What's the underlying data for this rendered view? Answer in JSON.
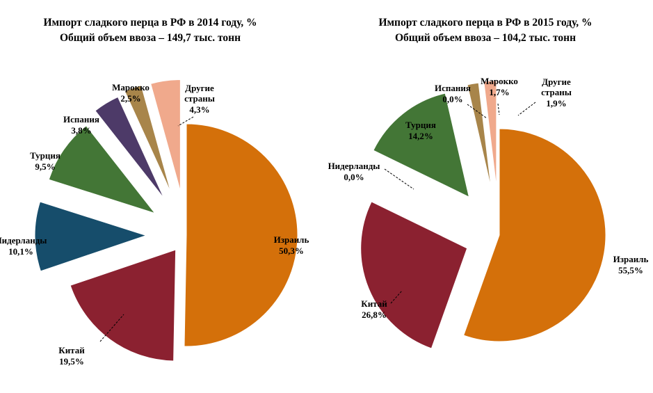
{
  "chart_data": [
    {
      "type": "pie",
      "title": "Импорт сладкого перца в РФ в 2014 году, %",
      "subtitle": "Общий объем ввоза – 149,7 тыс. тонн",
      "slices": [
        {
          "label": "Израиль",
          "value_text": "50,3%",
          "value": 50.3,
          "color": "#D4700A"
        },
        {
          "label": "Китай",
          "value_text": "19,5%",
          "value": 19.5,
          "color": "#8B2130"
        },
        {
          "label": "Нидерланды",
          "value_text": "10,1%",
          "value": 10.1,
          "color": "#164D6B"
        },
        {
          "label": "Турция",
          "value_text": "9,5%",
          "value": 9.5,
          "color": "#437636"
        },
        {
          "label": "Испания",
          "value_text": "3,8%",
          "value": 3.8,
          "color": "#4D3A68"
        },
        {
          "label": "Марокко",
          "value_text": "2,5%",
          "value": 2.5,
          "color": "#A8854A"
        },
        {
          "label": "Другие страны",
          "value_text": "4,3%",
          "value": 4.3,
          "color": "#F0A98C"
        }
      ]
    },
    {
      "type": "pie",
      "title": "Импорт сладкого перца в РФ в 2015 году, %",
      "subtitle": "Общий объем ввоза – 104,2 тыс. тонн",
      "slices": [
        {
          "label": "Израиль",
          "value_text": "55,5%",
          "value": 55.5,
          "color": "#D4700A"
        },
        {
          "label": "Китай",
          "value_text": "26,8%",
          "value": 26.8,
          "color": "#8B2130"
        },
        {
          "label": "Нидерланды",
          "value_text": "0,0%",
          "value": 0.0,
          "color": "#164D6B"
        },
        {
          "label": "Турция",
          "value_text": "14,2%",
          "value": 14.2,
          "color": "#437636"
        },
        {
          "label": "Испания",
          "value_text": "0,0%",
          "value": 0.0,
          "color": "#4D3A68"
        },
        {
          "label": "Марокко",
          "value_text": "1,7%",
          "value": 1.7,
          "color": "#A8854A"
        },
        {
          "label": "Другие страны",
          "value_text": "1,9%",
          "value": 1.9,
          "color": "#F0A98C"
        }
      ]
    }
  ]
}
